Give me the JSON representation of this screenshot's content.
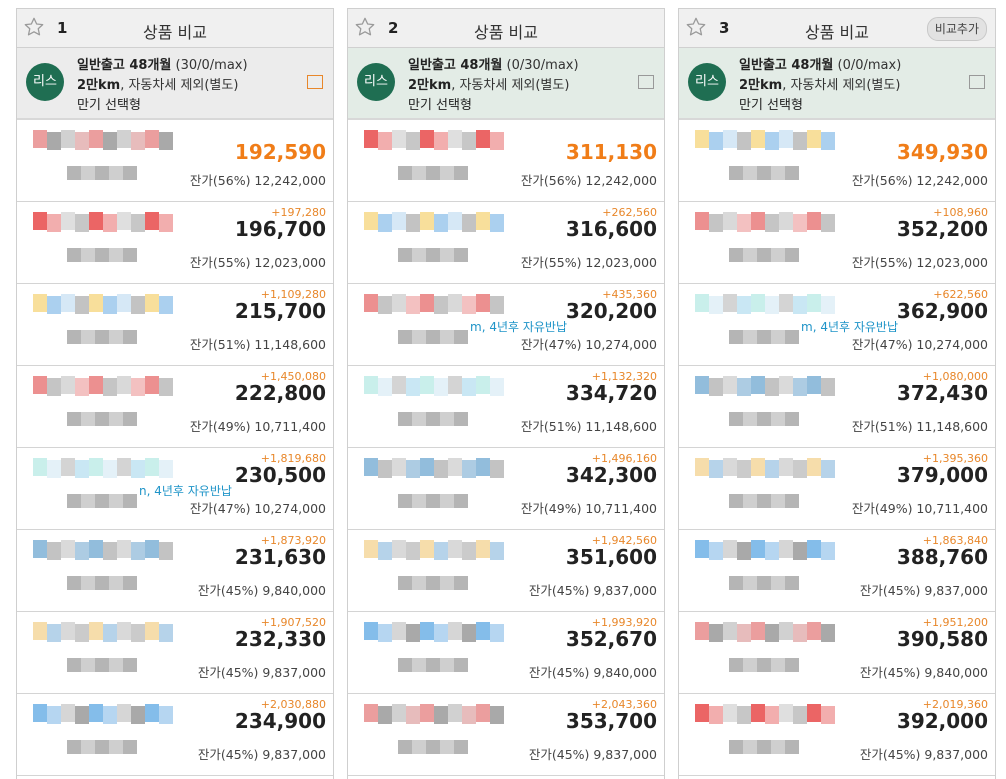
{
  "columns": [
    {
      "number": "1",
      "title": "상품 비교",
      "add_button": "",
      "badge": "리스",
      "line1_bold": "일반출고 48개월",
      "line1_light": " (30/0/max)",
      "line2_bold": "2만km",
      "line2_light": ", 자동차세 제외(별도)",
      "line3": "만기 선택형",
      "icon_color": "#e8872a",
      "rows": [
        {
          "diff": "",
          "price": "192,590",
          "residual": "잔가(56%) 12,242,000",
          "note": ""
        },
        {
          "diff": "+197,280",
          "price": "196,700",
          "residual": "잔가(55%) 12,023,000",
          "note": ""
        },
        {
          "diff": "+1,109,280",
          "price": "215,700",
          "residual": "잔가(51%) 11,148,600",
          "note": ""
        },
        {
          "diff": "+1,450,080",
          "price": "222,800",
          "residual": "잔가(49%) 10,711,400",
          "note": ""
        },
        {
          "diff": "+1,819,680",
          "price": "230,500",
          "residual": "잔가(47%) 10,274,000",
          "note": "n, 4년후 자유반납"
        },
        {
          "diff": "+1,873,920",
          "price": "231,630",
          "residual": "잔가(45%) 9,840,000",
          "note": ""
        },
        {
          "diff": "+1,907,520",
          "price": "232,330",
          "residual": "잔가(45%) 9,837,000",
          "note": ""
        },
        {
          "diff": "+2,030,880",
          "price": "234,900",
          "residual": "잔가(45%) 9,837,000",
          "note": ""
        }
      ]
    },
    {
      "number": "2",
      "title": "상품 비교",
      "add_button": "",
      "badge": "리스",
      "line1_bold": "일반출고 48개월",
      "line1_light": " (0/30/max)",
      "line2_bold": "2만km",
      "line2_light": ", 자동차세 제외(별도)",
      "line3": "만기 선택형",
      "icon_color": "#999999",
      "rows": [
        {
          "diff": "",
          "price": "311,130",
          "residual": "잔가(56%) 12,242,000",
          "note": ""
        },
        {
          "diff": "+262,560",
          "price": "316,600",
          "residual": "잔가(55%) 12,023,000",
          "note": ""
        },
        {
          "diff": "+435,360",
          "price": "320,200",
          "residual": "잔가(47%) 10,274,000",
          "note": "m, 4년후 자유반납"
        },
        {
          "diff": "+1,132,320",
          "price": "334,720",
          "residual": "잔가(51%) 11,148,600",
          "note": ""
        },
        {
          "diff": "+1,496,160",
          "price": "342,300",
          "residual": "잔가(49%) 10,711,400",
          "note": ""
        },
        {
          "diff": "+1,942,560",
          "price": "351,600",
          "residual": "잔가(45%) 9,837,000",
          "note": ""
        },
        {
          "diff": "+1,993,920",
          "price": "352,670",
          "residual": "잔가(45%) 9,840,000",
          "note": ""
        },
        {
          "diff": "+2,043,360",
          "price": "353,700",
          "residual": "잔가(45%) 9,837,000",
          "note": ""
        }
      ]
    },
    {
      "number": "3",
      "title": "상품 비교",
      "add_button": "비교추가",
      "badge": "리스",
      "line1_bold": "일반출고 48개월",
      "line1_light": " (0/0/max)",
      "line2_bold": "2만km",
      "line2_light": ", 자동차세 제외(별도)",
      "line3": "만기 선택형",
      "icon_color": "#999999",
      "rows": [
        {
          "diff": "",
          "price": "349,930",
          "residual": "잔가(56%) 12,242,000",
          "note": ""
        },
        {
          "diff": "+108,960",
          "price": "352,200",
          "residual": "잔가(55%) 12,023,000",
          "note": ""
        },
        {
          "diff": "+622,560",
          "price": "362,900",
          "residual": "잔가(47%) 10,274,000",
          "note": "m, 4년후 자유반납"
        },
        {
          "diff": "+1,080,000",
          "price": "372,430",
          "residual": "잔가(51%) 11,148,600",
          "note": ""
        },
        {
          "diff": "+1,395,360",
          "price": "379,000",
          "residual": "잔가(49%) 10,711,400",
          "note": ""
        },
        {
          "diff": "+1,863,840",
          "price": "388,760",
          "residual": "잔가(45%) 9,837,000",
          "note": ""
        },
        {
          "diff": "+1,951,200",
          "price": "390,580",
          "residual": "잔가(45%) 9,840,000",
          "note": ""
        },
        {
          "diff": "+2,019,360",
          "price": "392,000",
          "residual": "잔가(45%) 9,837,000",
          "note": ""
        }
      ]
    }
  ]
}
